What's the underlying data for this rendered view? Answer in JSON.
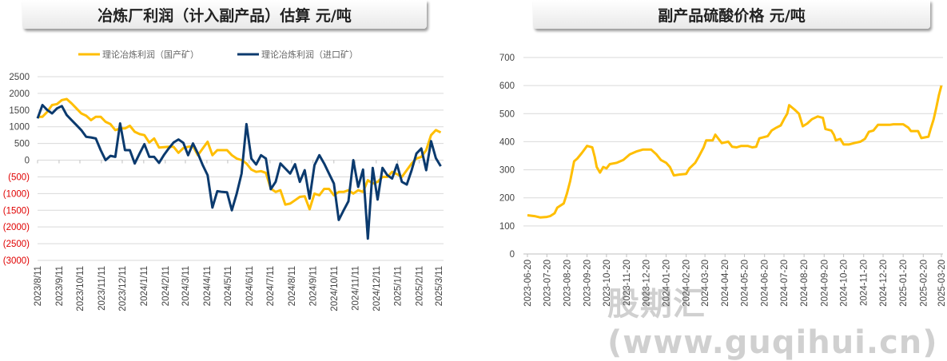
{
  "titles": {
    "left": "冶炼厂利润（计入副产品）估算  元/吨",
    "right": "副产品硫酸价格  元/吨"
  },
  "watermark": "股期汇(www.guqihui.cn)",
  "chart_data": [
    {
      "type": "line",
      "title": "冶炼厂利润（计入副产品）估算  元/吨",
      "ylim": [
        -3000,
        2500
      ],
      "yticks": [
        2500,
        2000,
        1500,
        1000,
        500,
        0,
        -500,
        -1000,
        -1500,
        -2000,
        -2500,
        -3000
      ],
      "ytick_labels": [
        "2500",
        "2000",
        "1500",
        "1000",
        "500",
        "0",
        "(500)",
        "(1000)",
        "(1500)",
        "(2000)",
        "(2500)",
        "(3000)"
      ],
      "negative_label_color": "#e00000",
      "xtick_labels": [
        "2023/8/11",
        "2023/9/11",
        "2023/10/11",
        "2023/11/11",
        "2023/12/11",
        "2024/1/11",
        "2024/2/11",
        "2024/3/11",
        "2024/4/11",
        "2024/5/11",
        "2024/6/11",
        "2024/7/11",
        "2024/8/11",
        "2024/9/11",
        "2024/10/11",
        "2024/11/11",
        "2024/12/11",
        "2025/1/11",
        "2025/2/11",
        "2025/3/11"
      ],
      "grid": true,
      "legend_position": "top",
      "x": [
        "2023-08-11",
        "2023-08-18",
        "2023-08-25",
        "2023-09-01",
        "2023-09-08",
        "2023-09-15",
        "2023-09-22",
        "2023-09-29",
        "2023-10-06",
        "2023-10-13",
        "2023-10-20",
        "2023-10-27",
        "2023-11-03",
        "2023-11-10",
        "2023-11-17",
        "2023-11-24",
        "2023-12-01",
        "2023-12-08",
        "2023-12-15",
        "2023-12-22",
        "2023-12-29",
        "2024-01-05",
        "2024-01-12",
        "2024-01-19",
        "2024-01-26",
        "2024-02-02",
        "2024-02-09",
        "2024-02-16",
        "2024-02-23",
        "2024-03-01",
        "2024-03-08",
        "2024-03-15",
        "2024-03-22",
        "2024-03-29",
        "2024-04-05",
        "2024-04-12",
        "2024-04-19",
        "2024-04-26",
        "2024-05-03",
        "2024-05-10",
        "2024-05-17",
        "2024-05-24",
        "2024-05-31",
        "2024-06-07",
        "2024-06-14",
        "2024-06-21",
        "2024-06-28",
        "2024-07-05",
        "2024-07-12",
        "2024-07-19",
        "2024-07-26",
        "2024-08-02",
        "2024-08-09",
        "2024-08-16",
        "2024-08-23",
        "2024-08-30",
        "2024-09-06",
        "2024-09-13",
        "2024-09-20",
        "2024-09-27",
        "2024-10-04",
        "2024-10-11",
        "2024-10-18",
        "2024-10-25",
        "2024-11-01",
        "2024-11-08",
        "2024-11-15",
        "2024-11-22",
        "2024-11-29",
        "2024-12-06",
        "2024-12-13",
        "2024-12-20",
        "2024-12-27",
        "2025-01-03",
        "2025-01-10",
        "2025-01-17",
        "2025-01-24",
        "2025-01-31",
        "2025-02-07",
        "2025-02-14",
        "2025-02-21",
        "2025-02-28",
        "2025-03-07",
        "2025-03-14"
      ],
      "series": [
        {
          "name": "理论冶炼利润（国产矿）",
          "color": "#FFBE00",
          "values": [
            1300,
            1300,
            1450,
            1650,
            1680,
            1800,
            1830,
            1700,
            1550,
            1400,
            1330,
            1200,
            1300,
            1300,
            1150,
            1080,
            900,
            950,
            950,
            1030,
            850,
            780,
            750,
            530,
            650,
            380,
            390,
            400,
            400,
            220,
            360,
            400,
            420,
            150,
            350,
            550,
            150,
            300,
            300,
            300,
            150,
            50,
            0,
            -100,
            -280,
            -350,
            -330,
            -380,
            -850,
            -950,
            -900,
            -1330,
            -1300,
            -1200,
            -1100,
            -1080,
            -1470,
            -1000,
            -1050,
            -860,
            -860,
            -1050,
            -950,
            -950,
            -900,
            -1000,
            -900,
            -950,
            -600,
            -700,
            -650,
            -500,
            -500,
            -350,
            -420,
            -500,
            -300,
            -100,
            50,
            100,
            300,
            750,
            900,
            830
          ]
        },
        {
          "name": "理论冶炼利润（进口矿）",
          "color": "#0B3A6E",
          "values": [
            1250,
            1650,
            1500,
            1400,
            1550,
            1620,
            1350,
            1200,
            1050,
            900,
            700,
            680,
            650,
            300,
            0,
            130,
            100,
            1100,
            300,
            300,
            -100,
            200,
            480,
            100,
            100,
            -80,
            150,
            350,
            530,
            620,
            520,
            150,
            500,
            200,
            -150,
            -450,
            -1420,
            -930,
            -950,
            -960,
            -1500,
            -1000,
            -400,
            1080,
            50,
            -130,
            150,
            50,
            -870,
            -650,
            -100,
            -250,
            -400,
            -120,
            -650,
            -300,
            -1150,
            -150,
            150,
            -100,
            -400,
            -700,
            -1790,
            -1500,
            -1230,
            0,
            -800,
            -280,
            -2350,
            -230,
            -1180,
            -230,
            -450,
            -550,
            -130,
            -650,
            -730,
            -300,
            200,
            350,
            -300,
            570,
            60,
            -180
          ]
        }
      ]
    },
    {
      "type": "line",
      "title": "副产品硫酸价格  元/吨",
      "ylim": [
        0,
        700
      ],
      "yticks": [
        0,
        100,
        200,
        300,
        400,
        500,
        600,
        700
      ],
      "xtick_labels": [
        "2023-06-20",
        "2023-07-20",
        "2023-08-20",
        "2023-09-20",
        "2023-10-20",
        "2023-11-20",
        "2023-12-20",
        "2024-01-20",
        "2024-02-20",
        "2024-03-20",
        "2024-04-20",
        "2024-05-20",
        "2024-06-20",
        "2024-07-20",
        "2024-08-20",
        "2024-09-20",
        "2024-10-20",
        "2024-11-20",
        "2024-12-20",
        "2025-01-20",
        "2025-02-20",
        "2025-03-20"
      ],
      "grid": true,
      "series": [
        {
          "color": "#FFBE00",
          "points": [
            [
              "2023-06-20",
              138
            ],
            [
              "2023-07-01",
              135
            ],
            [
              "2023-07-10",
              130
            ],
            [
              "2023-07-20",
              132
            ],
            [
              "2023-07-25",
              135
            ],
            [
              "2023-08-01",
              145
            ],
            [
              "2023-08-05",
              165
            ],
            [
              "2023-08-15",
              180
            ],
            [
              "2023-08-20",
              215
            ],
            [
              "2023-08-25",
              260
            ],
            [
              "2023-08-31",
              330
            ],
            [
              "2023-09-05",
              340
            ],
            [
              "2023-09-12",
              360
            ],
            [
              "2023-09-20",
              385
            ],
            [
              "2023-09-28",
              380
            ],
            [
              "2023-10-02",
              345
            ],
            [
              "2023-10-05",
              310
            ],
            [
              "2023-10-10",
              290
            ],
            [
              "2023-10-15",
              310
            ],
            [
              "2023-10-20",
              305
            ],
            [
              "2023-10-25",
              320
            ],
            [
              "2023-11-05",
              325
            ],
            [
              "2023-11-15",
              335
            ],
            [
              "2023-11-25",
              355
            ],
            [
              "2023-12-05",
              365
            ],
            [
              "2023-12-15",
              372
            ],
            [
              "2023-12-28",
              372
            ],
            [
              "2024-01-05",
              355
            ],
            [
              "2024-01-12",
              335
            ],
            [
              "2024-01-20",
              325
            ],
            [
              "2024-01-26",
              310
            ],
            [
              "2024-02-01",
              280
            ],
            [
              "2024-02-10",
              283
            ],
            [
              "2024-02-20",
              285
            ],
            [
              "2024-02-25",
              305
            ],
            [
              "2024-03-05",
              325
            ],
            [
              "2024-03-10",
              345
            ],
            [
              "2024-03-18",
              380
            ],
            [
              "2024-03-22",
              405
            ],
            [
              "2024-04-01",
              405
            ],
            [
              "2024-04-05",
              425
            ],
            [
              "2024-04-10",
              410
            ],
            [
              "2024-04-15",
              395
            ],
            [
              "2024-04-25",
              400
            ],
            [
              "2024-05-01",
              382
            ],
            [
              "2024-05-08",
              380
            ],
            [
              "2024-05-15",
              385
            ],
            [
              "2024-05-25",
              385
            ],
            [
              "2024-06-01",
              380
            ],
            [
              "2024-06-07",
              382
            ],
            [
              "2024-06-12",
              412
            ],
            [
              "2024-06-25",
              420
            ],
            [
              "2024-07-01",
              440
            ],
            [
              "2024-07-08",
              450
            ],
            [
              "2024-07-15",
              458
            ],
            [
              "2024-07-20",
              480
            ],
            [
              "2024-07-25",
              500
            ],
            [
              "2024-07-28",
              530
            ],
            [
              "2024-08-05",
              515
            ],
            [
              "2024-08-12",
              500
            ],
            [
              "2024-08-18",
              455
            ],
            [
              "2024-08-25",
              465
            ],
            [
              "2024-09-01",
              480
            ],
            [
              "2024-09-10",
              490
            ],
            [
              "2024-09-18",
              485
            ],
            [
              "2024-09-22",
              445
            ],
            [
              "2024-10-01",
              440
            ],
            [
              "2024-10-05",
              425
            ],
            [
              "2024-10-08",
              405
            ],
            [
              "2024-10-15",
              410
            ],
            [
              "2024-10-20",
              390
            ],
            [
              "2024-10-28",
              390
            ],
            [
              "2024-11-05",
              395
            ],
            [
              "2024-11-15",
              400
            ],
            [
              "2024-11-22",
              410
            ],
            [
              "2024-11-28",
              435
            ],
            [
              "2024-12-05",
              440
            ],
            [
              "2024-12-12",
              460
            ],
            [
              "2024-12-30",
              460
            ],
            [
              "2025-01-05",
              462
            ],
            [
              "2025-01-20",
              462
            ],
            [
              "2025-01-28",
              450
            ],
            [
              "2025-02-01",
              438
            ],
            [
              "2025-02-12",
              438
            ],
            [
              "2025-02-17",
              413
            ],
            [
              "2025-02-28",
              418
            ],
            [
              "2025-03-04",
              450
            ],
            [
              "2025-03-08",
              480
            ],
            [
              "2025-03-12",
              520
            ],
            [
              "2025-03-16",
              565
            ],
            [
              "2025-03-20",
              600
            ]
          ]
        }
      ]
    }
  ]
}
